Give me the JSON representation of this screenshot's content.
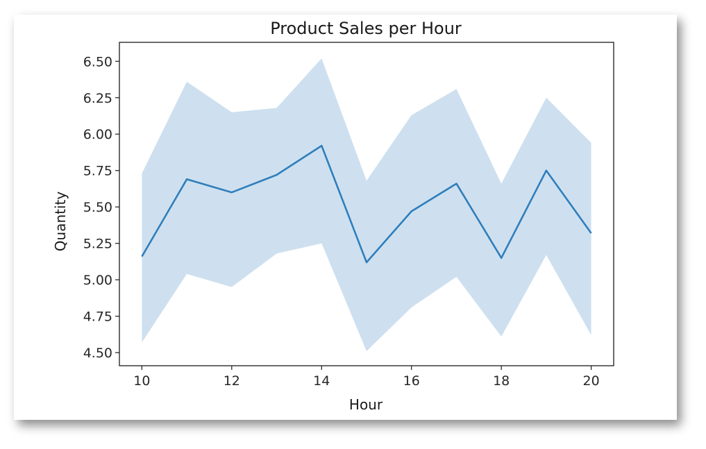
{
  "chart_data": {
    "type": "line",
    "title": "Product Sales per Hour",
    "xlabel": "Hour",
    "ylabel": "Quantity",
    "x": [
      10,
      11,
      12,
      13,
      14,
      15,
      16,
      17,
      18,
      19,
      20
    ],
    "series": [
      {
        "values": [
          5.16,
          5.69,
          5.6,
          5.72,
          5.92,
          5.12,
          5.47,
          5.66,
          5.15,
          5.75,
          5.32
        ],
        "ci_lower": [
          4.57,
          5.04,
          4.95,
          5.18,
          5.25,
          4.51,
          4.81,
          5.02,
          4.61,
          5.17,
          4.62
        ],
        "ci_upper": [
          5.73,
          6.36,
          6.15,
          6.18,
          6.52,
          5.68,
          6.13,
          6.31,
          5.66,
          6.25,
          5.94
        ]
      }
    ],
    "xlim": [
      9.5,
      20.5
    ],
    "ylim": [
      4.41,
      6.63
    ],
    "xticks": [
      10,
      12,
      14,
      16,
      18,
      20
    ],
    "yticks": [
      4.5,
      4.75,
      5.0,
      5.25,
      5.5,
      5.75,
      6.0,
      6.25,
      6.5
    ],
    "ytick_labels": [
      "4.50",
      "4.75",
      "5.00",
      "5.25",
      "5.50",
      "5.75",
      "6.00",
      "6.25",
      "6.50"
    ],
    "grid": false,
    "colors": {
      "line": "#2f7ebc",
      "band": "#c6dbec",
      "axis": "#1a1a1a"
    }
  }
}
